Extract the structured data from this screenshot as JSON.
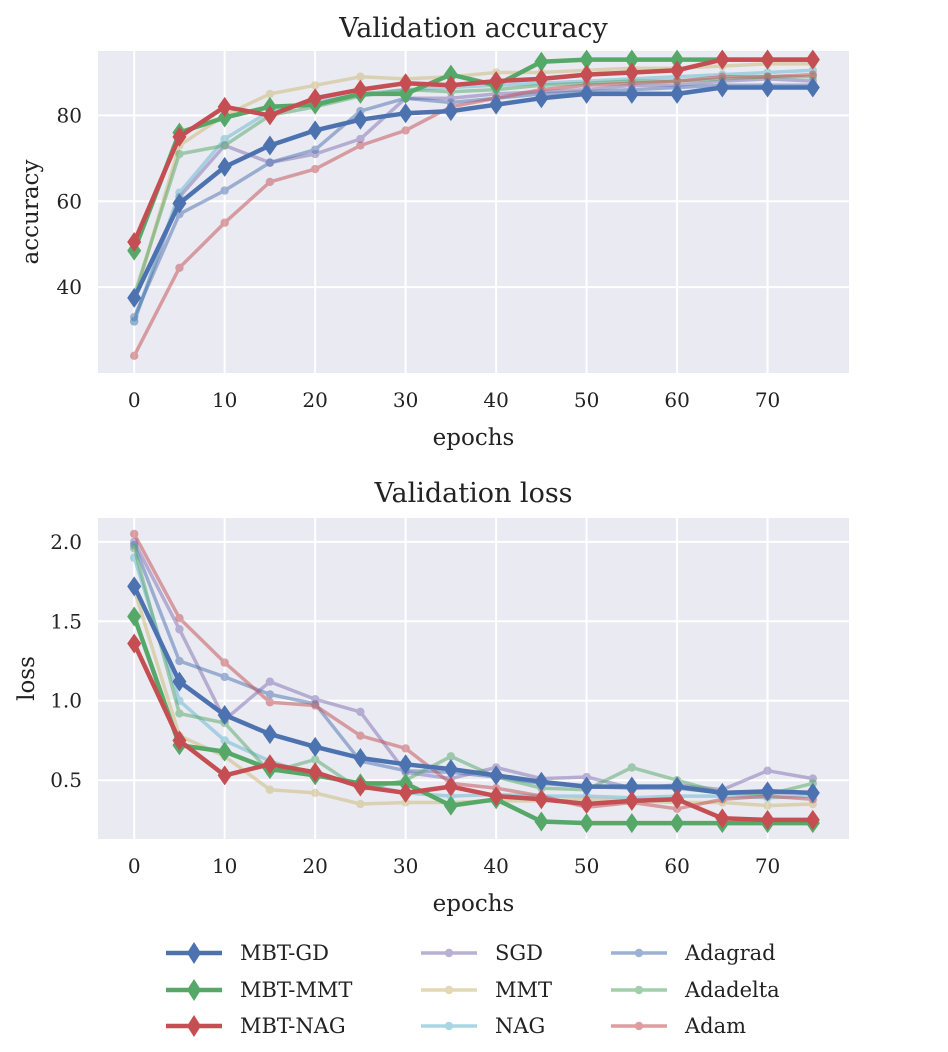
{
  "chart_data": [
    {
      "type": "line",
      "title": "Validation accuracy",
      "xlabel": "epochs",
      "ylabel": "accuracy",
      "xlim": [
        -4,
        79
      ],
      "ylim": [
        20,
        95
      ],
      "xticks": [
        0,
        10,
        20,
        30,
        40,
        50,
        60,
        70
      ],
      "yticks": [
        40,
        60,
        80
      ],
      "grid": true,
      "x": [
        0,
        5,
        10,
        15,
        20,
        25,
        30,
        35,
        40,
        45,
        50,
        55,
        60,
        65,
        70,
        75
      ],
      "series": [
        {
          "name": "SGD",
          "values": [
            32,
            61,
            73,
            69,
            71,
            74.5,
            84,
            84,
            85,
            85.5,
            86,
            87,
            87,
            88,
            88.5,
            88
          ]
        },
        {
          "name": "MMT",
          "values": [
            37,
            73,
            80,
            85,
            87,
            89,
            88.5,
            89,
            90,
            90,
            90.5,
            91,
            91,
            91.5,
            92,
            92
          ]
        },
        {
          "name": "NAG",
          "values": [
            32,
            62,
            74.5,
            81,
            83,
            85,
            86,
            86.5,
            87,
            87.5,
            88,
            88.5,
            89,
            89.5,
            90,
            90.5
          ]
        },
        {
          "name": "Adagrad",
          "values": [
            33,
            57,
            62.5,
            69,
            72,
            81,
            84,
            83,
            84,
            85,
            85.5,
            86,
            86.5,
            87,
            87,
            87
          ]
        },
        {
          "name": "Adadelta",
          "values": [
            38,
            71,
            73,
            80,
            82,
            84.5,
            86,
            85.5,
            86,
            87,
            87.5,
            88,
            88,
            88.5,
            89,
            89
          ]
        },
        {
          "name": "Adam",
          "values": [
            24,
            44.5,
            55,
            64.5,
            67.5,
            73,
            76.5,
            82,
            84,
            86,
            87,
            87.5,
            88,
            89,
            89,
            89.5
          ]
        },
        {
          "name": "MBT-GD",
          "values": [
            37.5,
            59.5,
            68,
            73,
            76.5,
            79,
            80.5,
            81,
            82.5,
            84,
            85,
            85,
            85,
            86.5,
            86.5,
            86.5
          ]
        },
        {
          "name": "MBT-MMT",
          "values": [
            48.5,
            76,
            79.5,
            82,
            82.5,
            85,
            85,
            89.5,
            87,
            92.5,
            93,
            93,
            93,
            93,
            93,
            93
          ]
        },
        {
          "name": "MBT-NAG",
          "values": [
            50.5,
            75,
            82,
            80,
            84,
            86,
            87.5,
            87,
            88,
            88.5,
            89.5,
            90,
            90.5,
            93,
            93,
            93
          ]
        }
      ]
    },
    {
      "type": "line",
      "title": "Validation loss",
      "xlabel": "epochs",
      "ylabel": "loss",
      "xlim": [
        -4,
        79
      ],
      "ylim": [
        0.13,
        2.15
      ],
      "xticks": [
        0,
        10,
        20,
        30,
        40,
        50,
        60,
        70
      ],
      "yticks": [
        0.5,
        1.0,
        1.5,
        2.0
      ],
      "ytick_labels": [
        "0.5",
        "1.0",
        "1.5",
        "2.0"
      ],
      "grid": true,
      "x": [
        0,
        5,
        10,
        15,
        20,
        25,
        30,
        35,
        40,
        45,
        50,
        55,
        60,
        65,
        70,
        75
      ],
      "series": [
        {
          "name": "SGD",
          "values": [
            2.0,
            1.45,
            0.88,
            1.12,
            1.01,
            0.93,
            0.55,
            0.51,
            0.58,
            0.51,
            0.52,
            0.45,
            0.47,
            0.44,
            0.56,
            0.51
          ]
        },
        {
          "name": "MMT",
          "values": [
            1.7,
            0.78,
            0.65,
            0.44,
            0.42,
            0.35,
            0.36,
            0.36,
            0.37,
            0.37,
            0.38,
            0.37,
            0.36,
            0.36,
            0.34,
            0.35
          ]
        },
        {
          "name": "NAG",
          "values": [
            1.9,
            1.0,
            0.75,
            0.62,
            0.53,
            0.48,
            0.42,
            0.4,
            0.41,
            0.4,
            0.4,
            0.39,
            0.4,
            0.4,
            0.39,
            0.4
          ]
        },
        {
          "name": "Adagrad",
          "values": [
            1.98,
            1.25,
            1.15,
            1.04,
            0.98,
            0.62,
            0.56,
            0.55,
            0.52,
            0.48,
            0.46,
            0.45,
            0.45,
            0.42,
            0.42,
            0.42
          ]
        },
        {
          "name": "Adadelta",
          "values": [
            1.96,
            0.92,
            0.86,
            0.55,
            0.63,
            0.44,
            0.5,
            0.65,
            0.52,
            0.45,
            0.44,
            0.58,
            0.5,
            0.42,
            0.41,
            0.48
          ]
        },
        {
          "name": "Adam",
          "values": [
            2.05,
            1.52,
            1.24,
            0.99,
            0.97,
            0.78,
            0.7,
            0.48,
            0.45,
            0.4,
            0.33,
            0.36,
            0.32,
            0.38,
            0.4,
            0.38
          ]
        },
        {
          "name": "MBT-GD",
          "values": [
            1.72,
            1.12,
            0.91,
            0.79,
            0.71,
            0.64,
            0.6,
            0.57,
            0.53,
            0.49,
            0.46,
            0.46,
            0.46,
            0.42,
            0.43,
            0.42
          ]
        },
        {
          "name": "MBT-MMT",
          "values": [
            1.53,
            0.72,
            0.68,
            0.57,
            0.53,
            0.48,
            0.48,
            0.34,
            0.38,
            0.24,
            0.23,
            0.23,
            0.23,
            0.23,
            0.23,
            0.23
          ]
        },
        {
          "name": "MBT-NAG",
          "values": [
            1.36,
            0.75,
            0.53,
            0.6,
            0.55,
            0.46,
            0.42,
            0.46,
            0.4,
            0.38,
            0.35,
            0.37,
            0.38,
            0.26,
            0.25,
            0.25
          ]
        }
      ]
    }
  ],
  "legend": {
    "placement": "bottom",
    "columns": [
      [
        "MBT-GD",
        "MBT-MMT",
        "MBT-NAG"
      ],
      [
        "SGD",
        "MMT",
        "NAG"
      ],
      [
        "Adagrad",
        "Adadelta",
        "Adam"
      ]
    ]
  },
  "series_style": {
    "MBT-GD": {
      "color": "#4c72b0",
      "marker": "diamond",
      "alpha": 1.0
    },
    "MBT-MMT": {
      "color": "#55a868",
      "marker": "diamond",
      "alpha": 1.0
    },
    "MBT-NAG": {
      "color": "#c44e52",
      "marker": "diamond",
      "alpha": 1.0
    },
    "SGD": {
      "color": "#8172b2",
      "marker": "dot",
      "alpha": 0.5
    },
    "MMT": {
      "color": "#ccb974",
      "marker": "dot",
      "alpha": 0.5
    },
    "NAG": {
      "color": "#64b5cd",
      "marker": "dot",
      "alpha": 0.5
    },
    "Adagrad": {
      "color": "#4c72b0",
      "marker": "dot",
      "alpha": 0.5
    },
    "Adadelta": {
      "color": "#55a868",
      "marker": "dot",
      "alpha": 0.5
    },
    "Adam": {
      "color": "#c44e52",
      "marker": "dot",
      "alpha": 0.5
    }
  },
  "colors": {
    "plot_background": "#eaeaf2",
    "grid": "#ffffff"
  }
}
